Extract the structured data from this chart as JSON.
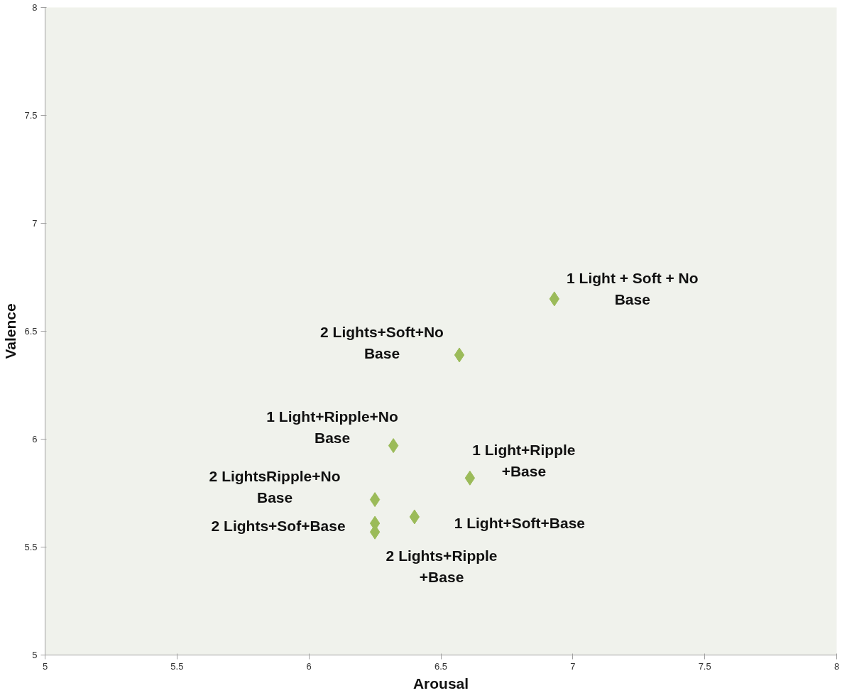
{
  "chart_data": {
    "type": "scatter",
    "xlabel": "Arousal",
    "ylabel": "Valence",
    "xlim": [
      5,
      8
    ],
    "ylim": [
      5,
      8
    ],
    "xticks": [
      5,
      5.5,
      6,
      6.5,
      7,
      7.5,
      8
    ],
    "yticks": [
      5,
      5.5,
      6,
      6.5,
      7,
      7.5,
      8
    ],
    "grid": false,
    "marker": "diamond",
    "series": [
      {
        "color": "#9bbb59",
        "x": [
          6.93,
          6.57,
          6.32,
          6.61,
          6.25,
          6.4,
          6.25,
          6.25
        ],
        "values": [
          6.65,
          6.39,
          5.97,
          5.82,
          5.72,
          5.64,
          5.61,
          5.57
        ]
      }
    ],
    "annotations": [
      {
        "text": "1 Light + Soft + No\nBase",
        "x": 6.93,
        "y": 6.65
      },
      {
        "text": "2 Lights+Soft+No\nBase",
        "x": 6.57,
        "y": 6.39
      },
      {
        "text": "1 Light+Ripple+No\nBase",
        "x": 6.32,
        "y": 5.97
      },
      {
        "text": "1 Light+Ripple\n+Base",
        "x": 6.61,
        "y": 5.82
      },
      {
        "text": "2 LightsRipple+No\nBase",
        "x": 6.25,
        "y": 5.72
      },
      {
        "text": "1 Light+Soft+Base",
        "x": 6.4,
        "y": 5.64
      },
      {
        "text": "2 Lights+Sof+Base",
        "x": 6.25,
        "y": 5.61
      },
      {
        "text": "2 Lights+Ripple\n+Base",
        "x": 6.25,
        "y": 5.57
      }
    ]
  }
}
